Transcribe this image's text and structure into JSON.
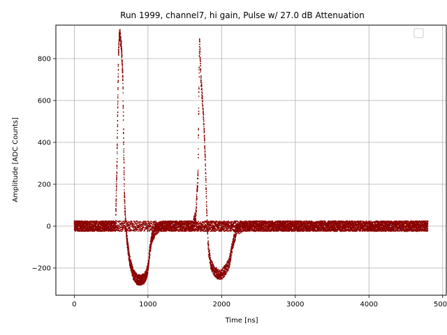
{
  "chart_data": {
    "type": "scatter",
    "title": "Run 1999, channel7, hi gain, Pulse w/ 27.0 dB Attenuation",
    "xlabel": "Time [ns]",
    "ylabel": "Amplitude [ADC Counts]",
    "xlim": [
      -250,
      5050
    ],
    "ylim": [
      -330,
      960
    ],
    "xticks": [
      0,
      1000,
      2000,
      3000,
      4000,
      5000
    ],
    "xtick_labels": [
      "0",
      "1000",
      "2000",
      "3000",
      "4000",
      "5000"
    ],
    "yticks": [
      -200,
      0,
      200,
      400,
      600,
      800
    ],
    "ytick_labels": [
      "−200",
      "0",
      "200",
      "400",
      "600",
      "800"
    ],
    "grid": true,
    "legend": "top-right, empty",
    "colors": {
      "points": "#8b0000",
      "grid": "#b0b0b0",
      "noise_accents": [
        "#2e7d32",
        "#1a237e",
        "#7b1fa2",
        "#f9a825"
      ]
    },
    "series": [
      {
        "x": [
          0,
          100,
          200,
          300,
          400,
          500,
          560,
          580,
          600,
          610,
          620,
          630,
          640,
          650,
          660,
          670,
          680,
          700,
          720,
          750,
          800,
          850,
          900,
          950,
          980,
          1000,
          1020,
          1050,
          1100,
          1150,
          1200,
          1300,
          1500,
          2000,
          3000,
          4000,
          4800
        ],
        "y": [
          0,
          0,
          0,
          0,
          0,
          0,
          0,
          300,
          820,
          900,
          920,
          880,
          860,
          780,
          700,
          400,
          150,
          0,
          -80,
          -160,
          -230,
          -255,
          -258,
          -250,
          -230,
          -200,
          -130,
          -60,
          -20,
          -5,
          0,
          0,
          0,
          0,
          0,
          0,
          0
        ]
      },
      {
        "x": [
          0,
          1000,
          1600,
          1650,
          1680,
          1700,
          1720,
          1740,
          1760,
          1780,
          1800,
          1820,
          1850,
          1900,
          1950,
          2000,
          2050,
          2100,
          2150,
          2200,
          2300,
          3000,
          4000,
          4800
        ],
        "y": [
          0,
          0,
          0,
          50,
          250,
          900,
          700,
          600,
          480,
          300,
          50,
          -100,
          -180,
          -215,
          -230,
          -230,
          -210,
          -180,
          -90,
          -20,
          0,
          0,
          0,
          0
        ]
      }
    ]
  }
}
